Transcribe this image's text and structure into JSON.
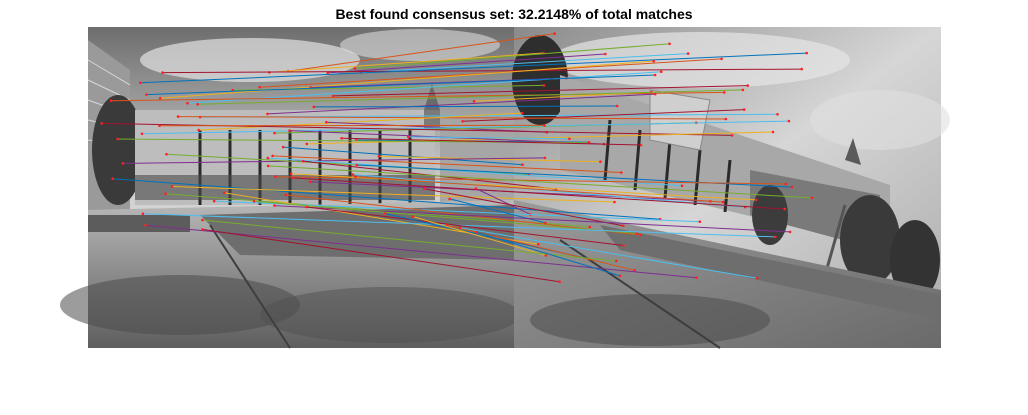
{
  "figure": {
    "title": "Best found consensus set: 32.2148% of total matches"
  },
  "images": {
    "left": "grayscale photo of a campus plaza with a glass-fronted building, trees and benches (reference view)",
    "right": "grayscale photo of the same plaza taken from a rotated/tilted viewpoint (query view)"
  },
  "match_line_colors": [
    "#d95319",
    "#edb120",
    "#7e2f8e",
    "#77ac30",
    "#4dbeee",
    "#a2142f",
    "#0072bd"
  ]
}
